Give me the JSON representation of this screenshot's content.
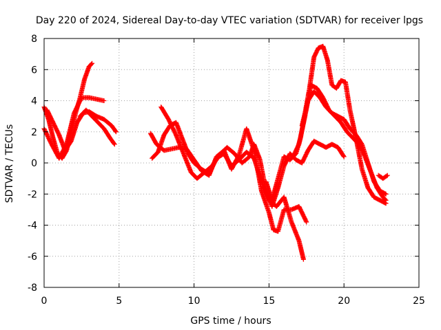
{
  "chart_data": {
    "type": "scatter",
    "title": "Day 220 of 2024, Sidereal Day-to-day VTEC variation (SDTVAR) for receiver lpgs",
    "xlabel": "GPS time / hours",
    "ylabel": "SDTVAR / TECUs",
    "xlim": [
      0,
      25
    ],
    "ylim": [
      -8,
      8
    ],
    "xticks": [
      0,
      5,
      10,
      15,
      20,
      25
    ],
    "yticks": [
      -8,
      -6,
      -4,
      -2,
      0,
      2,
      4,
      6,
      8
    ],
    "grid": true,
    "legend": "none",
    "marker": "+",
    "series": [
      {
        "name": "trace-a",
        "color": "#ff0000",
        "x": [
          0.0,
          0.3,
          0.6,
          0.9,
          1.2,
          1.5,
          1.8,
          2.1,
          2.4,
          2.7,
          3.0,
          3.2
        ],
        "y": [
          3.6,
          2.8,
          1.6,
          0.6,
          0.3,
          0.8,
          2.0,
          3.2,
          4.2,
          5.4,
          6.2,
          6.4
        ]
      },
      {
        "name": "trace-b",
        "color": "#ff0000",
        "x": [
          0.0,
          0.5,
          1.0,
          1.5,
          2.0,
          2.5,
          3.0,
          3.5,
          4.0
        ],
        "y": [
          2.2,
          1.2,
          0.3,
          1.2,
          3.2,
          4.2,
          4.2,
          4.1,
          4.0
        ]
      },
      {
        "name": "trace-c",
        "color": "#ff0000",
        "x": [
          0.2,
          0.6,
          1.0,
          1.4,
          1.8,
          2.2,
          2.6,
          3.0,
          3.5,
          4.0,
          4.5,
          4.8
        ],
        "y": [
          3.4,
          2.6,
          1.8,
          0.8,
          1.4,
          2.6,
          3.2,
          3.3,
          3.0,
          2.8,
          2.4,
          2.0
        ]
      },
      {
        "name": "trace-d",
        "color": "#ff0000",
        "x": [
          2.4,
          2.8,
          3.2,
          3.6,
          4.0,
          4.4,
          4.7
        ],
        "y": [
          3.0,
          3.4,
          3.0,
          2.6,
          2.2,
          1.6,
          1.2
        ]
      },
      {
        "name": "trace-e",
        "color": "#ff0000",
        "x": [
          7.1,
          7.5,
          8.0,
          8.5,
          9.0,
          9.5,
          10.0,
          10.5,
          11.0,
          11.5,
          12.0,
          12.5,
          13.0,
          13.5,
          14.0,
          14.5,
          15.0,
          15.3,
          15.6,
          16.0,
          16.5,
          17.0,
          17.5
        ],
        "y": [
          1.9,
          1.2,
          0.8,
          0.9,
          1.0,
          0.9,
          0.2,
          -0.5,
          -0.8,
          0.4,
          0.8,
          -0.4,
          0.5,
          2.2,
          0.8,
          -1.8,
          -3.2,
          -4.3,
          -4.4,
          -3.0,
          -3.0,
          -2.8,
          -3.8
        ]
      },
      {
        "name": "trace-f",
        "color": "#ff0000",
        "x": [
          7.2,
          7.6,
          8.0,
          8.4,
          8.8,
          9.2,
          9.6,
          10.0,
          10.5,
          11.0,
          11.5,
          12.0,
          12.5,
          13.0,
          13.5,
          14.0,
          14.5,
          15.0,
          15.5,
          16.0,
          16.5,
          17.0,
          17.3
        ],
        "y": [
          0.3,
          0.7,
          1.8,
          2.4,
          2.6,
          1.6,
          0.6,
          0.0,
          -0.4,
          -0.7,
          0.3,
          0.6,
          -0.2,
          0.2,
          0.7,
          0.3,
          -1.2,
          -2.4,
          -2.8,
          -2.2,
          -3.8,
          -5.0,
          -6.2
        ]
      },
      {
        "name": "trace-g",
        "color": "#ff0000",
        "x": [
          7.8,
          8.3,
          8.8,
          9.3,
          9.8,
          10.2,
          10.7,
          11.2,
          11.7,
          12.2,
          12.7,
          13.2,
          13.7,
          14.0,
          14.4,
          14.8,
          15.2,
          15.6,
          16.0,
          16.4,
          16.8,
          17.2,
          17.6,
          18.0,
          18.4,
          18.8,
          19.2,
          19.6,
          20.0
        ],
        "y": [
          3.6,
          2.8,
          1.8,
          0.6,
          -0.6,
          -1.0,
          -0.6,
          -0.2,
          0.5,
          1.0,
          0.6,
          0.0,
          0.4,
          1.2,
          0.2,
          -1.8,
          -2.8,
          -1.6,
          -0.2,
          0.6,
          0.2,
          0.0,
          0.8,
          1.4,
          1.2,
          1.0,
          1.2,
          1.0,
          0.4
        ]
      },
      {
        "name": "trace-h",
        "color": "#ff0000",
        "x": [
          14.8,
          15.2,
          15.6,
          16.0,
          16.4,
          16.8,
          17.1,
          17.4,
          17.7,
          18.0,
          18.3,
          18.6,
          18.9,
          19.2,
          19.5,
          19.8,
          20.1,
          20.4,
          20.8,
          21.2,
          21.6,
          22.0,
          22.4,
          22.8
        ],
        "y": [
          -1.2,
          -2.4,
          -1.0,
          0.4,
          0.2,
          0.6,
          1.6,
          3.2,
          4.8,
          6.8,
          7.4,
          7.5,
          6.6,
          5.0,
          4.8,
          5.3,
          5.2,
          3.4,
          1.6,
          -0.4,
          -1.6,
          -2.2,
          -2.4,
          -2.6
        ]
      },
      {
        "name": "trace-i",
        "color": "#ff0000",
        "x": [
          16.6,
          17.0,
          17.4,
          17.8,
          18.2,
          18.6,
          19.0,
          19.4,
          19.8,
          20.2,
          20.6,
          21.0,
          21.4,
          21.8,
          22.2,
          22.6,
          22.8
        ],
        "y": [
          0.4,
          1.2,
          3.0,
          5.0,
          4.8,
          4.2,
          3.4,
          3.0,
          2.6,
          2.0,
          1.6,
          1.2,
          0.4,
          -0.6,
          -1.6,
          -2.2,
          -2.4
        ]
      },
      {
        "name": "trace-j",
        "color": "#ff0000",
        "x": [
          17.2,
          17.6,
          18.0,
          18.4,
          18.8,
          19.2,
          19.6,
          20.0,
          20.4,
          20.8,
          21.2,
          21.6,
          22.0,
          22.4,
          22.8
        ],
        "y": [
          2.4,
          4.0,
          4.6,
          4.2,
          3.6,
          3.2,
          3.0,
          2.8,
          2.2,
          1.8,
          1.2,
          0.0,
          -1.2,
          -1.8,
          -2.0
        ]
      },
      {
        "name": "trace-k",
        "color": "#ff0000",
        "x": [
          22.3,
          22.6,
          22.9
        ],
        "y": [
          -0.8,
          -1.0,
          -0.8
        ]
      }
    ]
  }
}
